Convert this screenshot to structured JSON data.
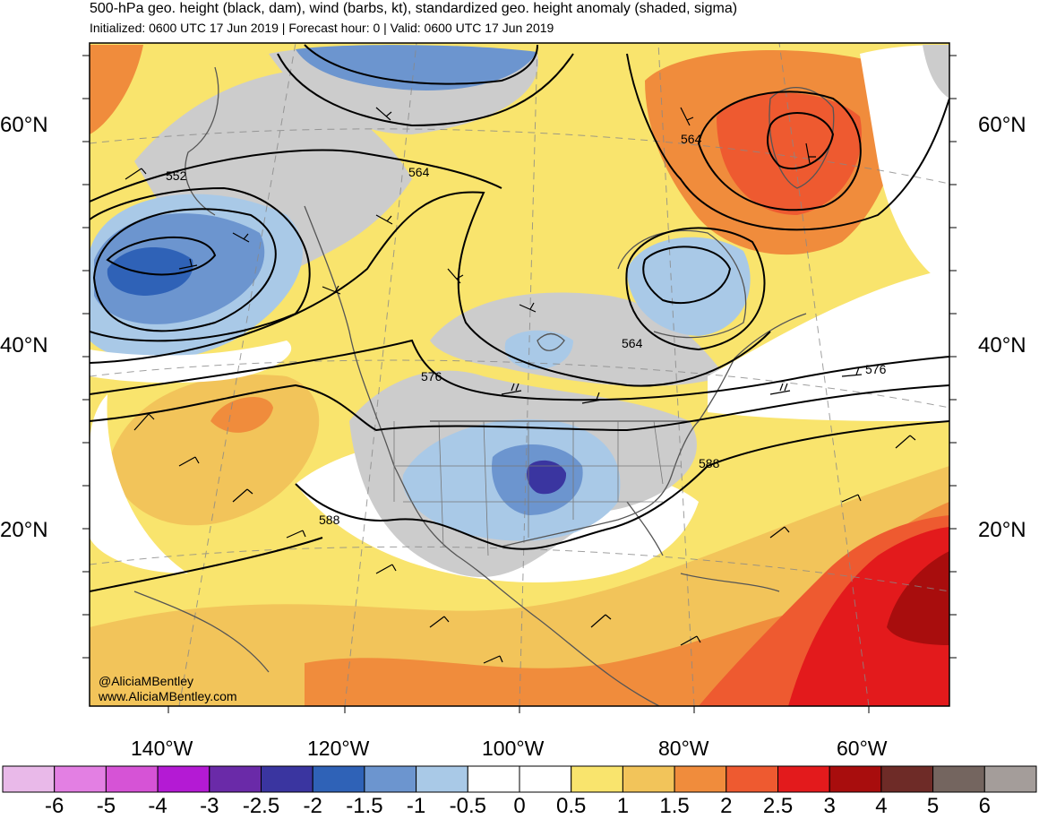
{
  "header": {
    "title": "500-hPa geo. height (black, dam), wind (barbs, kt), standardized geo. height anomaly (shaded, sigma)",
    "subtitle": "Initialized: 0600 UTC 17 Jun 2019 | Forecast hour: 0 | Valid: 0600 UTC 17 Jun 2019"
  },
  "map": {
    "lat_labels": [
      "60°N",
      "40°N",
      "20°N"
    ],
    "lon_labels": [
      "140°W",
      "120°W",
      "100°W",
      "80°W",
      "60°W"
    ],
    "contour_labels": [
      "552",
      "564",
      "564",
      "564",
      "576",
      "576",
      "588",
      "588"
    ],
    "credit": [
      "@AliciaMBentley",
      "www.AliciaMBentley.com"
    ]
  },
  "colorbar": {
    "labels": [
      "-6",
      "-5",
      "-4",
      "-3",
      "-2.5",
      "-2",
      "-1.5",
      "-1",
      "-0.5",
      "0",
      "0.5",
      "1",
      "1.5",
      "2",
      "2.5",
      "3",
      "4",
      "5",
      "6"
    ],
    "colors": [
      "#e9b9e9",
      "#e37fe3",
      "#d653d6",
      "#b41ad4",
      "#6a2aa8",
      "#3a35a0",
      "#2f62b7",
      "#6c95cf",
      "#a9c9e7",
      "#ffffff",
      "#ffffff",
      "#f9e46d",
      "#f2c45a",
      "#f08c3c",
      "#ee5a30",
      "#e31a1c",
      "#a80d0d",
      "#6e2b27",
      "#74655f",
      "#a49d9a"
    ]
  },
  "palette": {
    "land_outline": "#555555",
    "gray_shade": "#cccccc",
    "ocean_white": "#ffffff"
  }
}
